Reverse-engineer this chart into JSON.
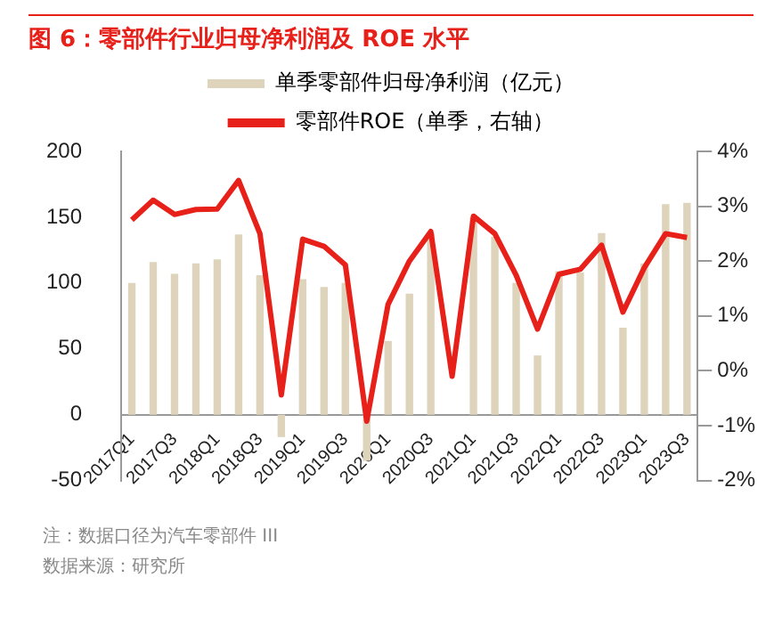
{
  "chart_data": {
    "type": "bar",
    "title": "图 6：零部件行业归母净利润及 ROE 水平",
    "categories": [
      "2017Q1",
      null,
      "2017Q3",
      null,
      "2018Q1",
      null,
      "2018Q3",
      null,
      "2019Q1",
      null,
      "2019Q3",
      null,
      "2020Q1",
      null,
      "2020Q3",
      null,
      "2021Q1",
      null,
      "2021Q3",
      null,
      "2022Q1",
      null,
      "2022Q3",
      null,
      "2023Q1",
      null,
      "2023Q3"
    ],
    "series": [
      {
        "name": "单季零部件归母净利润（亿元）",
        "color": "#ded4bc",
        "values": [
          100,
          116,
          107,
          115,
          118,
          137,
          106,
          -17,
          103,
          97,
          100,
          -35,
          56,
          92,
          138,
          null,
          150,
          135,
          100,
          45,
          109,
          108,
          138,
          66,
          115,
          160,
          161
        ]
      },
      {
        "name": "零部件ROE（单季，右轴）",
        "type": "line",
        "axis": "y2",
        "color": "#e8201a",
        "values": [
          2.75,
          3.11,
          2.85,
          2.94,
          2.95,
          3.47,
          2.5,
          -0.44,
          2.4,
          2.27,
          1.93,
          -0.92,
          1.21,
          2.0,
          2.54,
          -0.1,
          2.82,
          2.5,
          1.74,
          0.76,
          1.76,
          1.85,
          2.29,
          1.07,
          1.88,
          2.5,
          2.43
        ]
      }
    ],
    "ylim": [
      -50,
      200
    ],
    "yticks": [
      -50,
      0,
      50,
      100,
      150,
      200
    ],
    "y2lim": [
      -2,
      4
    ],
    "y2ticks": [
      {
        "value": -2,
        "label": "-2%"
      },
      {
        "value": -1,
        "label": "-1%"
      },
      {
        "value": 0,
        "label": "0%"
      },
      {
        "value": 1,
        "label": "1%"
      },
      {
        "value": 2,
        "label": "2%"
      },
      {
        "value": 3,
        "label": "3%"
      },
      {
        "value": 4,
        "label": "4%"
      }
    ],
    "legend": "top",
    "grid": false,
    "marker": "none",
    "annotations": [
      "注：数据口径为汽车零部件 III",
      "数据来源：研究所"
    ]
  }
}
